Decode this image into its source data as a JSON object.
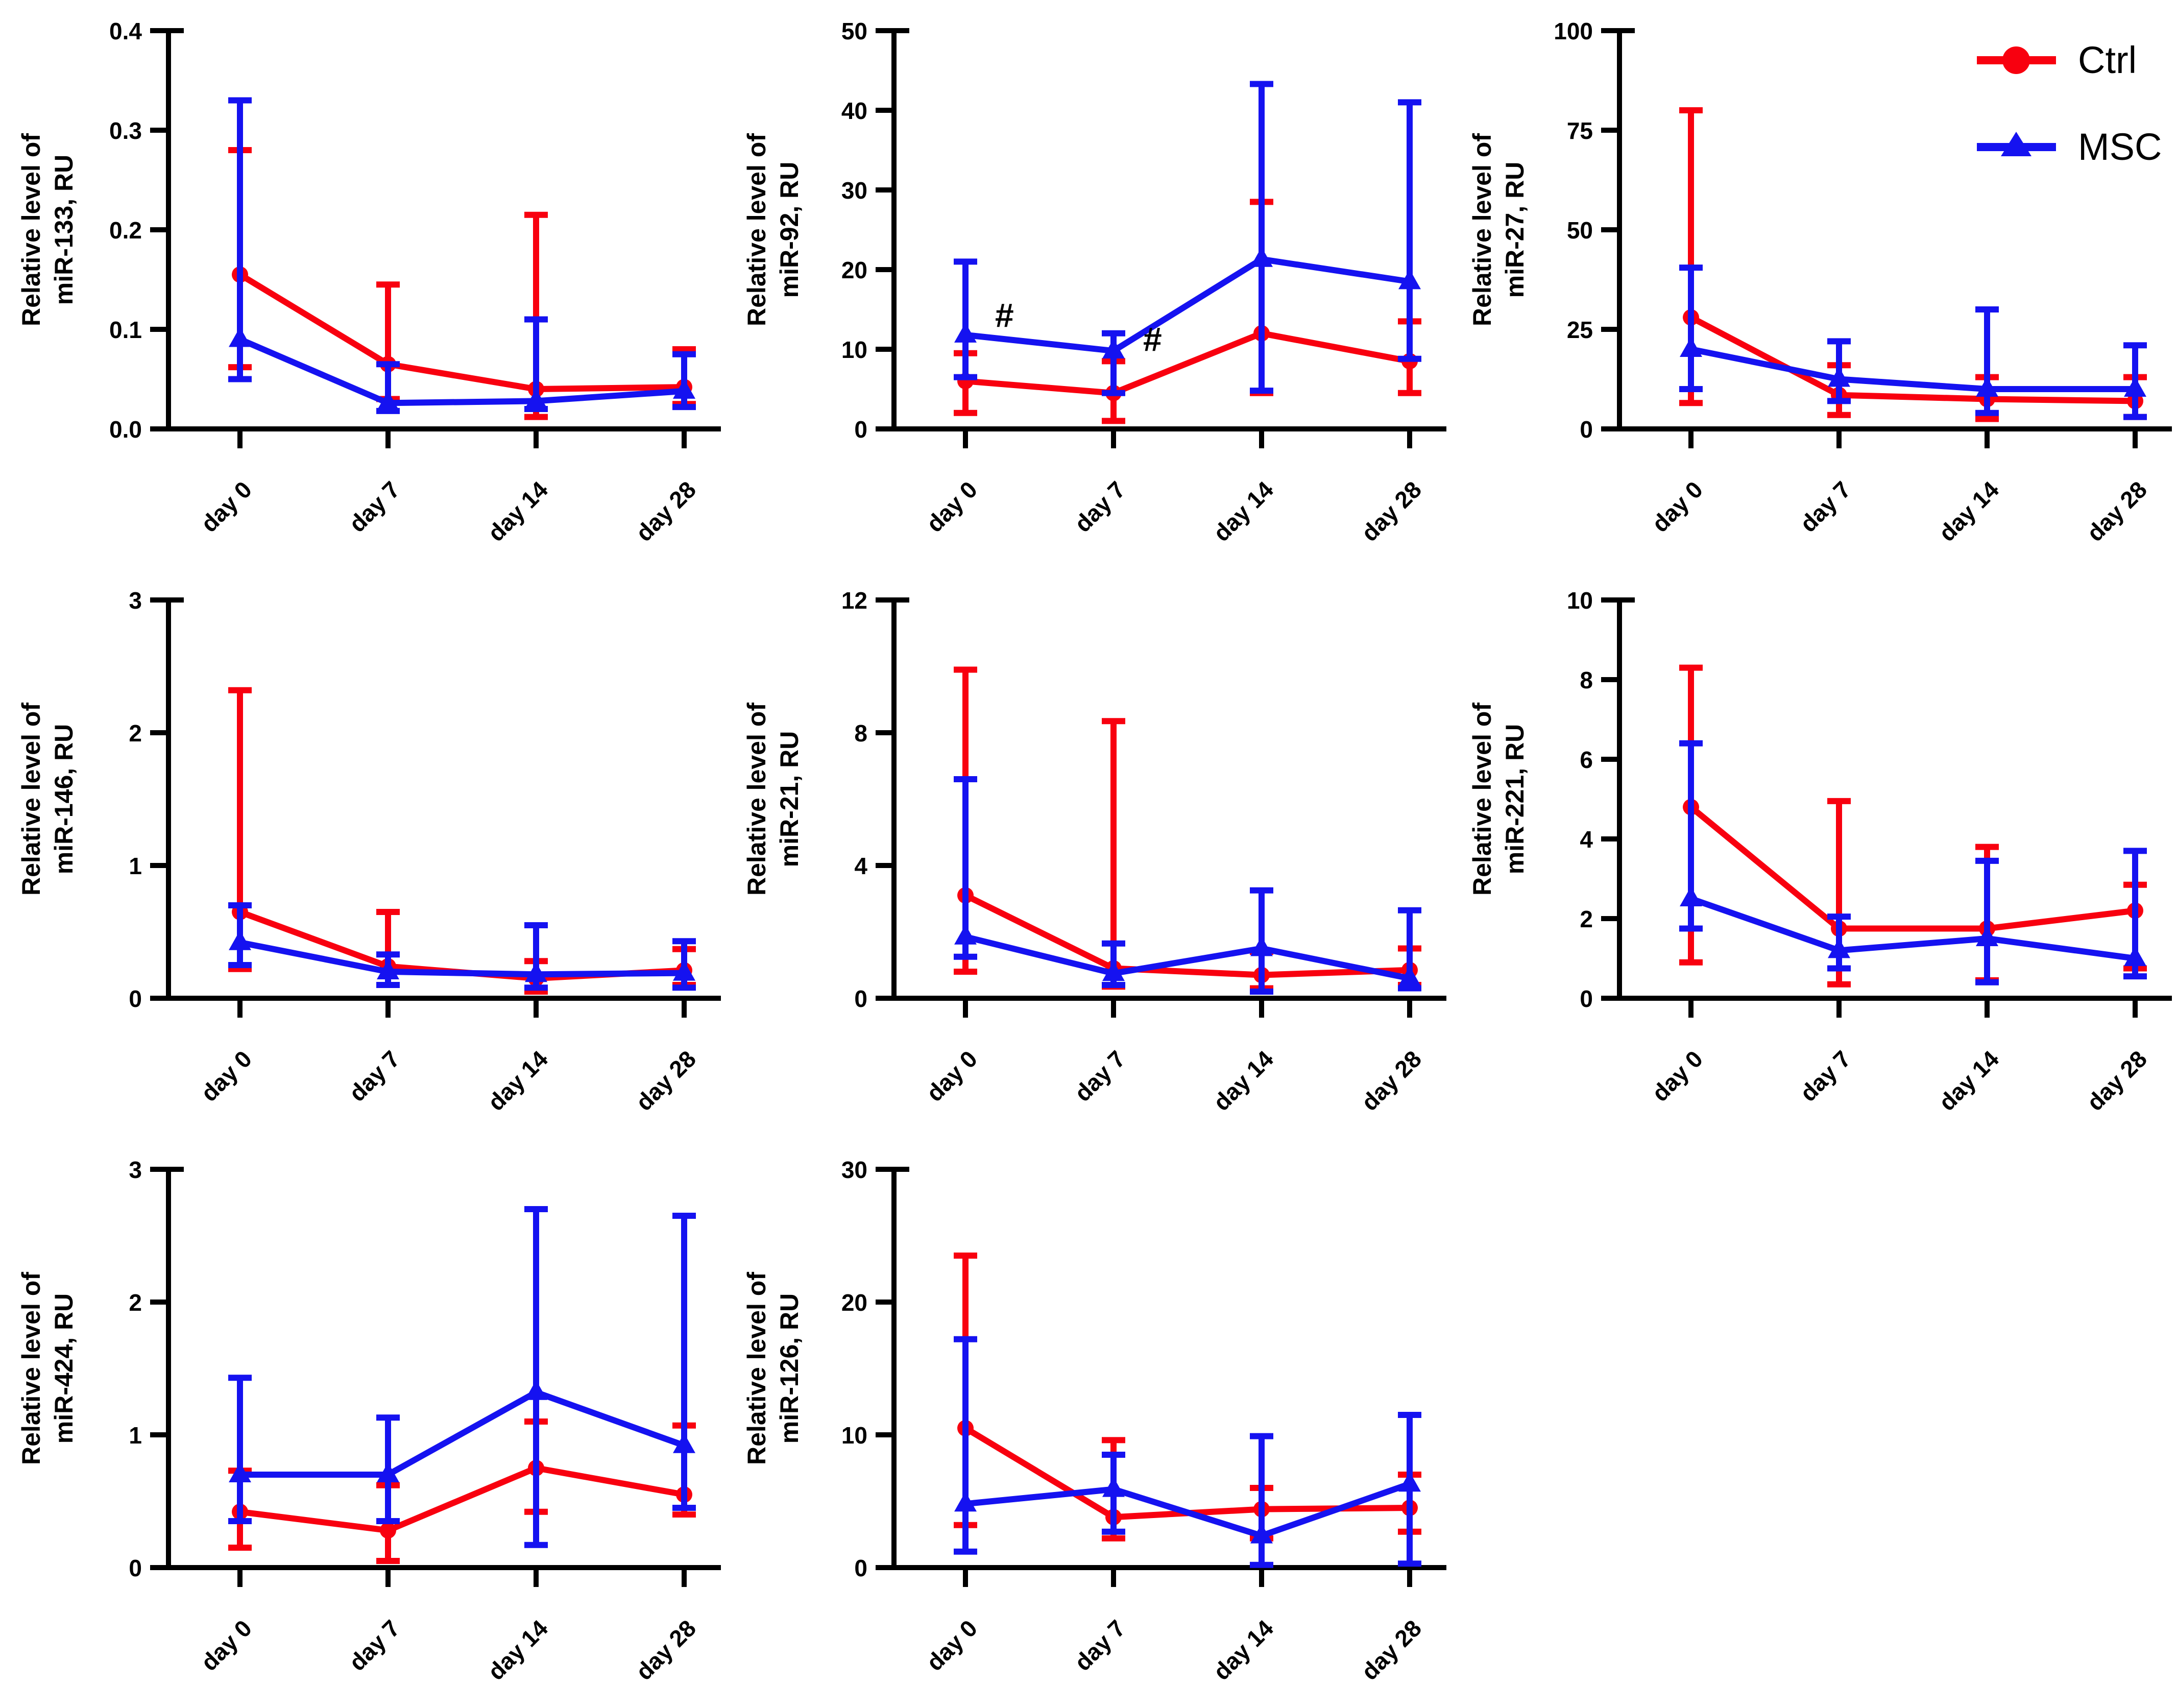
{
  "figure": {
    "background": "#ffffff",
    "legend_panel_index": 2
  },
  "colors": {
    "ctrl": "#f8000f",
    "msc": "#1512f0",
    "axis": "#000000",
    "text": "#000000",
    "annotation": "#000000"
  },
  "legend": {
    "position": "top-right",
    "items": [
      {
        "label": "Ctrl",
        "series": "ctrl",
        "marker": "circle"
      },
      {
        "label": "MSC",
        "series": "msc",
        "marker": "triangle"
      }
    ]
  },
  "categories": [
    "day 0",
    "day 7",
    "day 14",
    "day 28"
  ],
  "chart_data": [
    {
      "id": "miR-133",
      "type": "line",
      "ylabel_lines": [
        "Relative level of",
        "miR-133, RU"
      ],
      "ylim": [
        0,
        0.4
      ],
      "yticks": [
        "0.0",
        "0.1",
        "0.2",
        "0.3",
        "0.4"
      ],
      "x_categories": [
        "day 0",
        "day 7",
        "day 14",
        "day 28"
      ],
      "series": [
        {
          "name": "Ctrl",
          "color_key": "ctrl",
          "marker": "circle",
          "mean": [
            0.155,
            0.065,
            0.04,
            0.042
          ],
          "err_lo": [
            0.062,
            0.03,
            0.012,
            0.025
          ],
          "err_hi": [
            0.28,
            0.145,
            0.215,
            0.08
          ]
        },
        {
          "name": "MSC",
          "color_key": "msc",
          "marker": "triangle",
          "mean": [
            0.09,
            0.026,
            0.028,
            0.038
          ],
          "err_lo": [
            0.05,
            0.018,
            0.02,
            0.022
          ],
          "err_hi": [
            0.33,
            0.065,
            0.11,
            0.075
          ]
        }
      ],
      "annotations": []
    },
    {
      "id": "miR-92",
      "type": "line",
      "ylabel_lines": [
        "Relative level of",
        "miR-92, RU"
      ],
      "ylim": [
        0,
        50
      ],
      "yticks": [
        "0",
        "10",
        "20",
        "30",
        "40",
        "50"
      ],
      "x_categories": [
        "day 0",
        "day 7",
        "day 14",
        "day 28"
      ],
      "series": [
        {
          "name": "Ctrl",
          "color_key": "ctrl",
          "marker": "circle",
          "mean": [
            6,
            4.5,
            12,
            8.5
          ],
          "err_lo": [
            2,
            1,
            4.5,
            4.5
          ],
          "err_hi": [
            9.5,
            8.5,
            28.5,
            13.5
          ]
        },
        {
          "name": "MSC",
          "color_key": "msc",
          "marker": "triangle",
          "mean": [
            11.8,
            9.8,
            21.3,
            18.5
          ],
          "err_lo": [
            6.5,
            4.5,
            4.8,
            8.8
          ],
          "err_hi": [
            21,
            12,
            43.3,
            41
          ]
        }
      ],
      "annotations": [
        {
          "text": "#",
          "x_index": 0,
          "y": 14.2
        },
        {
          "text": "#",
          "x_index": 1,
          "y": 11.2
        }
      ]
    },
    {
      "id": "miR-27",
      "type": "line",
      "ylabel_lines": [
        "Relative level of",
        "miR-27, RU"
      ],
      "ylim": [
        0,
        100
      ],
      "yticks": [
        "0",
        "25",
        "50",
        "75",
        "100"
      ],
      "x_categories": [
        "day 0",
        "day 7",
        "day 14",
        "day 28"
      ],
      "series": [
        {
          "name": "Ctrl",
          "color_key": "ctrl",
          "marker": "circle",
          "mean": [
            28,
            8.5,
            7.5,
            7
          ],
          "err_lo": [
            6.5,
            3.5,
            2.5,
            3
          ],
          "err_hi": [
            80,
            16,
            13,
            13
          ]
        },
        {
          "name": "MSC",
          "color_key": "msc",
          "marker": "triangle",
          "mean": [
            20,
            12.5,
            10,
            10
          ],
          "err_lo": [
            10,
            7,
            4,
            3
          ],
          "err_hi": [
            40.5,
            22,
            30,
            21
          ]
        }
      ],
      "annotations": [],
      "show_legend": true
    },
    {
      "id": "miR-146",
      "type": "line",
      "ylabel_lines": [
        "Relative level of",
        "miR-146, RU"
      ],
      "ylim": [
        0,
        3
      ],
      "yticks": [
        "0",
        "1",
        "2",
        "3"
      ],
      "x_categories": [
        "day 0",
        "day 7",
        "day 14",
        "day 28"
      ],
      "series": [
        {
          "name": "Ctrl",
          "color_key": "ctrl",
          "marker": "circle",
          "mean": [
            0.65,
            0.24,
            0.15,
            0.21
          ],
          "err_lo": [
            0.22,
            0.1,
            0.05,
            0.1
          ],
          "err_hi": [
            2.32,
            0.65,
            0.28,
            0.37
          ]
        },
        {
          "name": "MSC",
          "color_key": "msc",
          "marker": "triangle",
          "mean": [
            0.42,
            0.2,
            0.18,
            0.19
          ],
          "err_lo": [
            0.25,
            0.1,
            0.08,
            0.08
          ],
          "err_hi": [
            0.7,
            0.33,
            0.55,
            0.43
          ]
        }
      ],
      "annotations": []
    },
    {
      "id": "miR-21",
      "type": "line",
      "ylabel_lines": [
        "Relative level of",
        "miR-21, RU"
      ],
      "ylim": [
        0,
        12
      ],
      "yticks": [
        "0",
        "4",
        "8",
        "12"
      ],
      "x_categories": [
        "day 0",
        "day 7",
        "day 14",
        "day 28"
      ],
      "series": [
        {
          "name": "Ctrl",
          "color_key": "ctrl",
          "marker": "circle",
          "mean": [
            3.1,
            0.9,
            0.7,
            0.85
          ],
          "err_lo": [
            0.8,
            0.35,
            0.3,
            0.4
          ],
          "err_hi": [
            9.9,
            8.35,
            1.4,
            1.5
          ]
        },
        {
          "name": "MSC",
          "color_key": "msc",
          "marker": "triangle",
          "mean": [
            1.85,
            0.75,
            1.5,
            0.6
          ],
          "err_lo": [
            1.25,
            0.4,
            0.2,
            0.3
          ],
          "err_hi": [
            6.6,
            1.65,
            3.25,
            2.65
          ]
        }
      ],
      "annotations": []
    },
    {
      "id": "miR-221",
      "type": "line",
      "ylabel_lines": [
        "Relative level of",
        "miR-221, RU"
      ],
      "ylim": [
        0,
        10
      ],
      "yticks": [
        "0",
        "2",
        "4",
        "6",
        "8",
        "10"
      ],
      "x_categories": [
        "day 0",
        "day 7",
        "day 14",
        "day 28"
      ],
      "series": [
        {
          "name": "Ctrl",
          "color_key": "ctrl",
          "marker": "circle",
          "mean": [
            4.8,
            1.75,
            1.75,
            2.2
          ],
          "err_lo": [
            0.9,
            0.35,
            0.45,
            0.75
          ],
          "err_hi": [
            8.3,
            4.95,
            3.8,
            2.85
          ]
        },
        {
          "name": "MSC",
          "color_key": "msc",
          "marker": "triangle",
          "mean": [
            2.5,
            1.2,
            1.5,
            1.0
          ],
          "err_lo": [
            1.75,
            0.75,
            0.4,
            0.55
          ],
          "err_hi": [
            6.4,
            2.05,
            3.45,
            3.7
          ]
        }
      ],
      "annotations": []
    },
    {
      "id": "miR-424",
      "type": "line",
      "ylabel_lines": [
        "Relative level of",
        "miR-424, RU"
      ],
      "ylim": [
        0,
        3
      ],
      "yticks": [
        "0",
        "1",
        "2",
        "3"
      ],
      "x_categories": [
        "day 0",
        "day 7",
        "day 14",
        "day 28"
      ],
      "series": [
        {
          "name": "Ctrl",
          "color_key": "ctrl",
          "marker": "circle",
          "mean": [
            0.42,
            0.28,
            0.75,
            0.55
          ],
          "err_lo": [
            0.15,
            0.05,
            0.42,
            0.4
          ],
          "err_hi": [
            0.73,
            0.62,
            1.1,
            1.07
          ]
        },
        {
          "name": "MSC",
          "color_key": "msc",
          "marker": "triangle",
          "mean": [
            0.7,
            0.7,
            1.32,
            0.92
          ],
          "err_lo": [
            0.35,
            0.35,
            0.17,
            0.45
          ],
          "err_hi": [
            1.43,
            1.13,
            2.7,
            2.65
          ]
        }
      ],
      "annotations": []
    },
    {
      "id": "miR-126",
      "type": "line",
      "ylabel_lines": [
        "Relative level of",
        "miR-126, RU"
      ],
      "ylim": [
        0,
        30
      ],
      "yticks": [
        "0",
        "10",
        "20",
        "30"
      ],
      "x_categories": [
        "day 0",
        "day 7",
        "day 14",
        "day 28"
      ],
      "series": [
        {
          "name": "Ctrl",
          "color_key": "ctrl",
          "marker": "circle",
          "mean": [
            10.5,
            3.8,
            4.4,
            4.5
          ],
          "err_lo": [
            3.2,
            2.2,
            2.2,
            2.7
          ],
          "err_hi": [
            23.5,
            9.6,
            6.0,
            7.0
          ]
        },
        {
          "name": "MSC",
          "color_key": "msc",
          "marker": "triangle",
          "mean": [
            4.8,
            5.9,
            2.4,
            6.3
          ],
          "err_lo": [
            1.2,
            2.7,
            0.2,
            0.3
          ],
          "err_hi": [
            17.2,
            8.5,
            9.9,
            11.5
          ]
        }
      ],
      "annotations": []
    }
  ]
}
